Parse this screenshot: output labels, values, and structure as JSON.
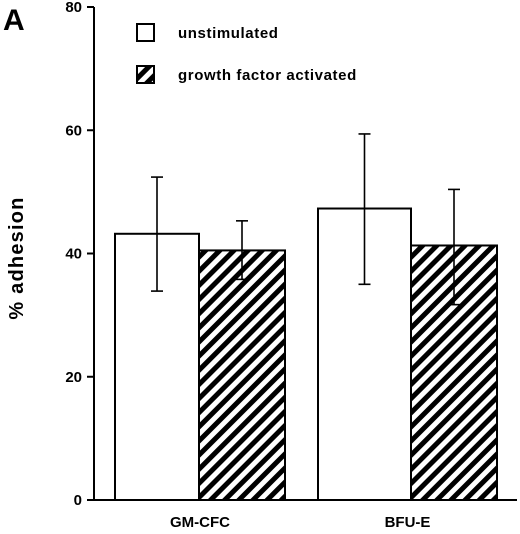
{
  "panel_label": "A",
  "colors": {
    "ink": "#000000",
    "paper": "#ffffff"
  },
  "chart_data": {
    "type": "bar",
    "ylabel": "% adhesion",
    "xlabel": "",
    "categories": [
      "GM-CFC",
      "BFU-E"
    ],
    "ylim": [
      0,
      80
    ],
    "yticks": [
      0,
      20,
      40,
      60,
      80
    ],
    "grid": false,
    "legend_position": "top-left",
    "series": [
      {
        "name": "unstimulated",
        "fill": "white",
        "values": [
          43.2,
          47.3
        ],
        "error_high": [
          52.4,
          59.4
        ],
        "error_low": [
          33.9,
          35.0
        ]
      },
      {
        "name": "growth factor activated",
        "fill": "diagonal-hatch",
        "values": [
          40.5,
          41.3
        ],
        "error_high": [
          45.3,
          50.4
        ],
        "error_low": [
          35.8,
          31.7
        ]
      }
    ]
  }
}
